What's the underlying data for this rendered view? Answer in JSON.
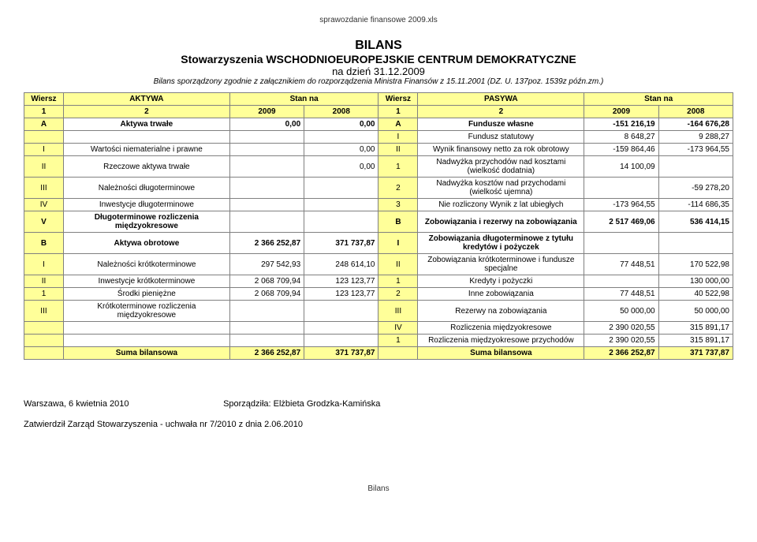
{
  "file_name": "sprawozdanie finansowe 2009.xls",
  "header": {
    "title": "BILANS",
    "org": "Stowarzyszenia WSCHODNIOEUROPEJSKIE CENTRUM DEMOKRATYCZNE",
    "date_label": "na dzień     31.12.2009",
    "note": "Bilans sporządzony zgodnie z załącznikiem do rozporządzenia Ministra Finansów z 15.11.2001 (DZ. U. 137poz. 1539z późn.zm.)"
  },
  "table": {
    "head": {
      "wiersz": "Wiersz",
      "aktywa": "AKTYWA",
      "stan": "Stan na",
      "pasywa": "PASYWA",
      "c1": "1",
      "c2": "2",
      "y2009": "2009",
      "y2008": "2008"
    },
    "rows": [
      {
        "bold": true,
        "l_idx": "A",
        "l_name": "Aktywa trwałe",
        "l_2009": "0,00",
        "l_2008": "0,00",
        "r_idx": "A",
        "r_name": "Fundusze własne",
        "r_2009": "-151 216,19",
        "r_2008": "-164 676,28"
      },
      {
        "l_idx": "",
        "l_name": "",
        "l_2009": "",
        "l_2008": "",
        "r_idx": "I",
        "r_name": "Fundusz statutowy",
        "r_2009": "8 648,27",
        "r_2008": "9 288,27",
        "rowspanL": true
      },
      {
        "l_idx": "I",
        "l_name": "Wartości niematerialne i prawne",
        "l_2009": "",
        "l_2008": "0,00",
        "r_idx": "II",
        "r_name": "Wynik finansowy netto za rok obrotowy",
        "r_2009": "-159 864,46",
        "r_2008": "-173 964,55"
      },
      {
        "l_idx": "II",
        "l_name": "Rzeczowe aktywa trwałe",
        "l_2009": "",
        "l_2008": "0,00",
        "r_idx": "1",
        "r_name": "Nadwyżka przychodów nad kosztami (wielkość dodatnia)",
        "r_2009": "14 100,09",
        "r_2008": ""
      },
      {
        "l_idx": "III",
        "l_name": "Należności długoterminowe",
        "l_2009": "",
        "l_2008": "",
        "r_idx": "2",
        "r_name": "Nadwyżka kosztów nad przychodami (wielkość ujemna)",
        "r_2009": "",
        "r_2008": "-59 278,20"
      },
      {
        "l_idx": "IV",
        "l_name": "Inwestycje długoterminowe",
        "l_2009": "",
        "l_2008": "",
        "r_idx": "3",
        "r_name": "Nie rozliczony Wynik z lat ubiegłych",
        "r_2009": "-173 964,55",
        "r_2008": "-114 686,35"
      },
      {
        "l_idx": "V",
        "l_name": "Długoterminowe rozliczenia międzyokresowe",
        "l_2009": "",
        "l_2008": "",
        "r_idx": "B",
        "r_name": "Zobowiązania i rezerwy na zobowiązania",
        "r_2009": "2 517 469,06",
        "r_2008": "536 414,15",
        "bold": true
      },
      {
        "bold": true,
        "l_idx": "B",
        "l_name": "Aktywa obrotowe",
        "l_2009": "2 366 252,87",
        "l_2008": "371 737,87",
        "r_idx": "I",
        "r_name": "Zobowiązania długoterminowe z tytułu kredytów i pożyczek",
        "r_2009": "",
        "r_2008": ""
      },
      {
        "l_idx": "I",
        "l_name": "Należności krótkoterminowe",
        "l_2009": "297 542,93",
        "l_2008": "248 614,10",
        "r_idx": "II",
        "r_name": "Zobowiązania krótkoterminowe i fundusze specjalne",
        "r_2009": "77 448,51",
        "r_2008": "170 522,98"
      },
      {
        "l_idx": "II",
        "l_name": "Inwestycje krótkoterminowe",
        "l_2009": "2 068 709,94",
        "l_2008": "123 123,77",
        "r_idx": "1",
        "r_name": "Kredyty i pożyczki",
        "r_2009": "",
        "r_2008": "130 000,00"
      },
      {
        "l_idx": "1",
        "l_name": "Środki pieniężne",
        "l_2009": "2 068 709,94",
        "l_2008": "123 123,77",
        "r_idx": "2",
        "r_name": "Inne zobowiązania",
        "r_2009": "77 448,51",
        "r_2008": "40 522,98"
      },
      {
        "l_idx": "III",
        "l_name": "Krótkoterminowe rozliczenia międzyokresowe",
        "l_2009": "",
        "l_2008": "",
        "r_idx": "III",
        "r_name": "Rezerwy na zobowiązania",
        "r_2009": "50 000,00",
        "r_2008": "50 000,00"
      },
      {
        "l_idx": "",
        "l_name": "",
        "l_2009": "",
        "l_2008": "",
        "r_idx": "IV",
        "r_name": "Rozliczenia międzyokresowe",
        "r_2009": "2 390 020,55",
        "r_2008": "315 891,17",
        "rowspanL": true
      },
      {
        "l_idx": "",
        "l_name": "",
        "l_2009": "",
        "l_2008": "",
        "r_idx": "1",
        "r_name": "Rozliczenia międzyokresowe przychodów",
        "r_2009": "2 390 020,55",
        "r_2008": "315 891,17",
        "rowspanL": true
      }
    ],
    "sum": {
      "l_name": "Suma bilansowa",
      "l_2009": "2 366 252,87",
      "l_2008": "371 737,87",
      "r_name": "Suma bilansowa",
      "r_2009": "2 366 252,87",
      "r_2008": "371 737,87"
    }
  },
  "footer": {
    "place_date": "Warszawa, 6 kwietnia 2010",
    "prepared_by": "Sporządziła: Elżbieta Grodzka-Kamińska",
    "approved": "Zatwierdził Zarząd Stowarzyszenia - uchwała nr 7/2010 z dnia 2.06.2010"
  },
  "page_footer": "Bilans"
}
